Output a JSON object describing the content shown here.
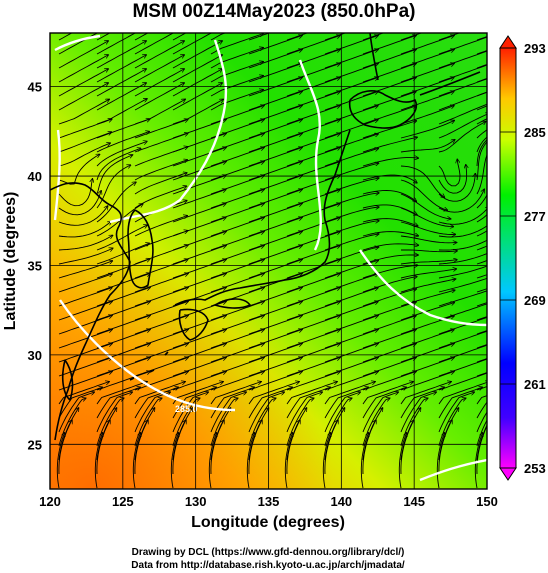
{
  "map": {
    "title": "MSM 00Z14May2023 (850.0hPa)",
    "xlabel": "Longitude (degrees)",
    "ylabel": "Latitude  (degrees)",
    "xlim": [
      120,
      150
    ],
    "ylim": [
      22.5,
      48
    ],
    "x_ticks": [
      "120",
      "125",
      "130",
      "135",
      "140",
      "145",
      "150"
    ],
    "y_ticks": [
      "25",
      "30",
      "35",
      "40",
      "45"
    ],
    "contour_label": "285.0",
    "colorbar": {
      "ticks": [
        "293",
        "285",
        "277",
        "269",
        "261",
        "253"
      ],
      "range": [
        253,
        293
      ],
      "colors": [
        "#ff00ff",
        "#0000ff",
        "#00c0ff",
        "#00e060",
        "#00ff00",
        "#ccff00",
        "#ffcc00",
        "#ff6000",
        "#ff0000"
      ]
    }
  },
  "credits": {
    "line1": "Drawing by DCL (https://www.gfd-dennou.org/library/dcl/)",
    "line2": "Data from http://database.rish.kyoto-u.ac.jp/arch/jmadata/"
  }
}
